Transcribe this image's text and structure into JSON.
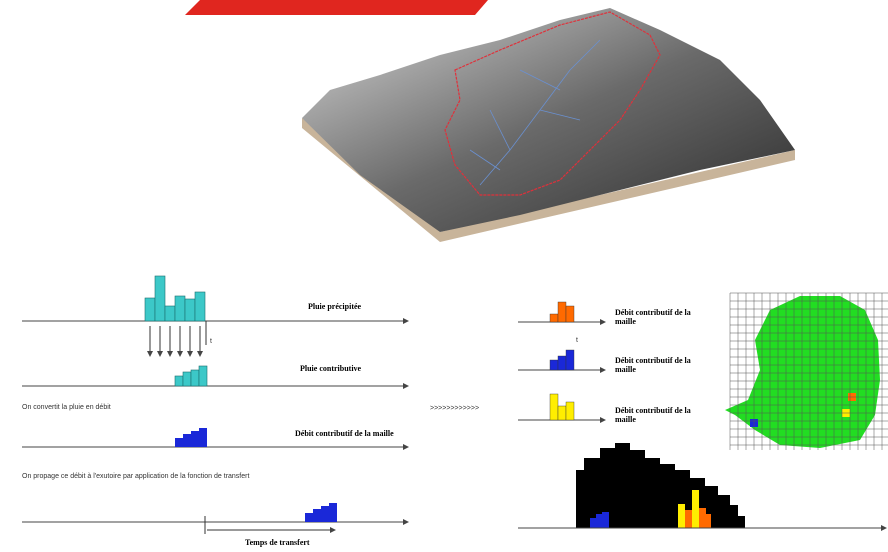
{
  "rainfall_label": "Pluie précipitée",
  "time_label": "t",
  "contributive_label": "Pluie contributive",
  "convert_note": "On convertit la pluie en débit",
  "cell_flow_label": "Débit contributif de la maille",
  "propagate_note": "On propage ce débit à l'exutoire par application de la fonction de transfert",
  "transfer_time_label": "Temps de transfert",
  "separator": ">>>>>>>>>>>>",
  "right_time_label": "t",
  "cell_flows": [
    {
      "line1": "Débit contributif de la",
      "line2": "maille"
    },
    {
      "line1": "Débit contributif de la",
      "line2": "maille"
    },
    {
      "line1": "Débit contributif de la",
      "line2": "maille"
    }
  ]
}
